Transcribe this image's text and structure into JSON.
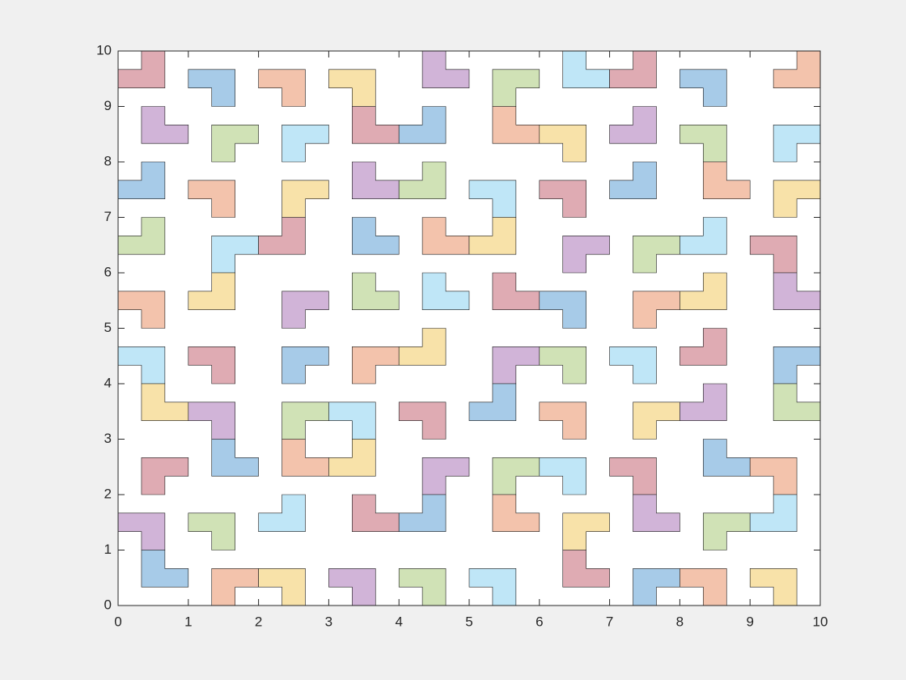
{
  "chart_data": {
    "type": "patch",
    "xlim": [
      0,
      10
    ],
    "ylim": [
      0,
      10
    ],
    "xticks": [
      0,
      1,
      2,
      3,
      4,
      5,
      6,
      7,
      8,
      9,
      10
    ],
    "yticks": [
      0,
      1,
      2,
      3,
      4,
      5,
      6,
      7,
      8,
      9,
      10
    ],
    "cell_size": 0.3333,
    "patches": [
      {
        "x": 0,
        "y": 9.3333,
        "missing": "tl",
        "color": "#dfabb3"
      },
      {
        "x": 1,
        "y": 9,
        "missing": "bl",
        "color": "#a7cbe8"
      },
      {
        "x": 2,
        "y": 9,
        "missing": "bl",
        "color": "#f3c3ac"
      },
      {
        "x": 3,
        "y": 9,
        "missing": "bl",
        "color": "#f8e2a9"
      },
      {
        "x": 4.3333,
        "y": 9.3333,
        "missing": "tr",
        "color": "#d1b4d8"
      },
      {
        "x": 5.3333,
        "y": 9,
        "missing": "br",
        "color": "#d0e2b6"
      },
      {
        "x": 6.3333,
        "y": 9.3333,
        "missing": "tr",
        "color": "#bfe6f7"
      },
      {
        "x": 7,
        "y": 9.3333,
        "missing": "tl",
        "color": "#dfabb3"
      },
      {
        "x": 8,
        "y": 9,
        "missing": "bl",
        "color": "#a7cbe8"
      },
      {
        "x": 9.3333,
        "y": 9.3333,
        "missing": "tl",
        "color": "#f3c3ac"
      },
      {
        "x": 0.3333,
        "y": 8.3333,
        "missing": "tr",
        "color": "#d1b4d8"
      },
      {
        "x": 1.3333,
        "y": 8,
        "missing": "br",
        "color": "#d0e2b6"
      },
      {
        "x": 2.3333,
        "y": 8,
        "missing": "br",
        "color": "#bfe6f7"
      },
      {
        "x": 3.3333,
        "y": 8.3333,
        "missing": "tr",
        "color": "#dfabb3"
      },
      {
        "x": 4,
        "y": 8.3333,
        "missing": "tl",
        "color": "#a7cbe8"
      },
      {
        "x": 5.3333,
        "y": 8.3333,
        "missing": "tr",
        "color": "#f3c3ac"
      },
      {
        "x": 6,
        "y": 8,
        "missing": "bl",
        "color": "#f8e2a9"
      },
      {
        "x": 7,
        "y": 8.3333,
        "missing": "tl",
        "color": "#d1b4d8"
      },
      {
        "x": 8,
        "y": 8,
        "missing": "bl",
        "color": "#d0e2b6"
      },
      {
        "x": 9.3333,
        "y": 8,
        "missing": "br",
        "color": "#bfe6f7"
      },
      {
        "x": 0,
        "y": 7.3333,
        "missing": "tl",
        "color": "#a7cbe8"
      },
      {
        "x": 1,
        "y": 7,
        "missing": "bl",
        "color": "#f3c3ac"
      },
      {
        "x": 2.3333,
        "y": 7,
        "missing": "br",
        "color": "#f8e2a9"
      },
      {
        "x": 3.3333,
        "y": 7.3333,
        "missing": "tr",
        "color": "#d1b4d8"
      },
      {
        "x": 4,
        "y": 7.3333,
        "missing": "tl",
        "color": "#d0e2b6"
      },
      {
        "x": 5,
        "y": 7,
        "missing": "bl",
        "color": "#bfe6f7"
      },
      {
        "x": 6,
        "y": 7,
        "missing": "bl",
        "color": "#dfabb3"
      },
      {
        "x": 7,
        "y": 7.3333,
        "missing": "tl",
        "color": "#a7cbe8"
      },
      {
        "x": 8.3333,
        "y": 7.3333,
        "missing": "tr",
        "color": "#f3c3ac"
      },
      {
        "x": 9.3333,
        "y": 7,
        "missing": "br",
        "color": "#f8e2a9"
      },
      {
        "x": 0,
        "y": 6.3333,
        "missing": "tl",
        "color": "#d0e2b6"
      },
      {
        "x": 1.3333,
        "y": 6,
        "missing": "br",
        "color": "#bfe6f7"
      },
      {
        "x": 2,
        "y": 6.3333,
        "missing": "tl",
        "color": "#dfabb3"
      },
      {
        "x": 3.3333,
        "y": 6.3333,
        "missing": "tr",
        "color": "#a7cbe8"
      },
      {
        "x": 4.3333,
        "y": 6.3333,
        "missing": "tr",
        "color": "#f3c3ac"
      },
      {
        "x": 5,
        "y": 6.3333,
        "missing": "tl",
        "color": "#f8e2a9"
      },
      {
        "x": 6.3333,
        "y": 6,
        "missing": "br",
        "color": "#d1b4d8"
      },
      {
        "x": 7.3333,
        "y": 6,
        "missing": "br",
        "color": "#d0e2b6"
      },
      {
        "x": 8,
        "y": 6.3333,
        "missing": "tl",
        "color": "#bfe6f7"
      },
      {
        "x": 9,
        "y": 6,
        "missing": "bl",
        "color": "#dfabb3"
      },
      {
        "x": 0,
        "y": 5,
        "missing": "bl",
        "color": "#f3c3ac"
      },
      {
        "x": 1,
        "y": 5.3333,
        "missing": "tl",
        "color": "#f8e2a9"
      },
      {
        "x": 2.3333,
        "y": 5,
        "missing": "br",
        "color": "#d1b4d8"
      },
      {
        "x": 3.3333,
        "y": 5.3333,
        "missing": "tr",
        "color": "#d0e2b6"
      },
      {
        "x": 4.3333,
        "y": 5.3333,
        "missing": "tr",
        "color": "#bfe6f7"
      },
      {
        "x": 5.3333,
        "y": 5.3333,
        "missing": "tr",
        "color": "#dfabb3"
      },
      {
        "x": 6,
        "y": 5,
        "missing": "bl",
        "color": "#a7cbe8"
      },
      {
        "x": 7.3333,
        "y": 5,
        "missing": "br",
        "color": "#f3c3ac"
      },
      {
        "x": 8,
        "y": 5.3333,
        "missing": "tl",
        "color": "#f8e2a9"
      },
      {
        "x": 9.3333,
        "y": 5.3333,
        "missing": "tr",
        "color": "#d1b4d8"
      },
      {
        "x": 0,
        "y": 4,
        "missing": "bl",
        "color": "#bfe6f7"
      },
      {
        "x": 1,
        "y": 4,
        "missing": "bl",
        "color": "#dfabb3"
      },
      {
        "x": 2.3333,
        "y": 4,
        "missing": "br",
        "color": "#a7cbe8"
      },
      {
        "x": 3.3333,
        "y": 4,
        "missing": "br",
        "color": "#f3c3ac"
      },
      {
        "x": 4,
        "y": 4.3333,
        "missing": "tl",
        "color": "#f8e2a9"
      },
      {
        "x": 5.3333,
        "y": 4,
        "missing": "br",
        "color": "#d1b4d8"
      },
      {
        "x": 6,
        "y": 4,
        "missing": "bl",
        "color": "#d0e2b6"
      },
      {
        "x": 7,
        "y": 4,
        "missing": "bl",
        "color": "#bfe6f7"
      },
      {
        "x": 8,
        "y": 4.3333,
        "missing": "tl",
        "color": "#dfabb3"
      },
      {
        "x": 9.3333,
        "y": 4,
        "missing": "br",
        "color": "#a7cbe8"
      },
      {
        "x": 0.3333,
        "y": 3.3333,
        "missing": "tr",
        "color": "#f8e2a9"
      },
      {
        "x": 1,
        "y": 3,
        "missing": "bl",
        "color": "#d1b4d8"
      },
      {
        "x": 2.3333,
        "y": 3,
        "missing": "br",
        "color": "#d0e2b6"
      },
      {
        "x": 3,
        "y": 3,
        "missing": "bl",
        "color": "#bfe6f7"
      },
      {
        "x": 4,
        "y": 3,
        "missing": "bl",
        "color": "#dfabb3"
      },
      {
        "x": 5,
        "y": 3.3333,
        "missing": "tl",
        "color": "#a7cbe8"
      },
      {
        "x": 6,
        "y": 3,
        "missing": "bl",
        "color": "#f3c3ac"
      },
      {
        "x": 7.3333,
        "y": 3,
        "missing": "br",
        "color": "#f8e2a9"
      },
      {
        "x": 8,
        "y": 3.3333,
        "missing": "tl",
        "color": "#d1b4d8"
      },
      {
        "x": 9.3333,
        "y": 3.3333,
        "missing": "tr",
        "color": "#d0e2b6"
      },
      {
        "x": 0.3333,
        "y": 2,
        "missing": "br",
        "color": "#dfabb3"
      },
      {
        "x": 1.3333,
        "y": 2.3333,
        "missing": "tr",
        "color": "#a7cbe8"
      },
      {
        "x": 2.3333,
        "y": 2.3333,
        "missing": "tr",
        "color": "#f3c3ac"
      },
      {
        "x": 3,
        "y": 2.3333,
        "missing": "tl",
        "color": "#f8e2a9"
      },
      {
        "x": 4.3333,
        "y": 2,
        "missing": "br",
        "color": "#d1b4d8"
      },
      {
        "x": 5.3333,
        "y": 2,
        "missing": "br",
        "color": "#d0e2b6"
      },
      {
        "x": 6,
        "y": 2,
        "missing": "bl",
        "color": "#bfe6f7"
      },
      {
        "x": 7,
        "y": 2,
        "missing": "bl",
        "color": "#dfabb3"
      },
      {
        "x": 8.3333,
        "y": 2.3333,
        "missing": "tr",
        "color": "#a7cbe8"
      },
      {
        "x": 9,
        "y": 2,
        "missing": "bl",
        "color": "#f3c3ac"
      },
      {
        "x": 0,
        "y": 1,
        "missing": "bl",
        "color": "#d1b4d8"
      },
      {
        "x": 1,
        "y": 1,
        "missing": "bl",
        "color": "#d0e2b6"
      },
      {
        "x": 2,
        "y": 1.3333,
        "missing": "tl",
        "color": "#bfe6f7"
      },
      {
        "x": 3.3333,
        "y": 1.3333,
        "missing": "tr",
        "color": "#dfabb3"
      },
      {
        "x": 4,
        "y": 1.3333,
        "missing": "tl",
        "color": "#a7cbe8"
      },
      {
        "x": 5.3333,
        "y": 1.3333,
        "missing": "tr",
        "color": "#f3c3ac"
      },
      {
        "x": 6.3333,
        "y": 1,
        "missing": "br",
        "color": "#f8e2a9"
      },
      {
        "x": 7.3333,
        "y": 1.3333,
        "missing": "tr",
        "color": "#d1b4d8"
      },
      {
        "x": 8.3333,
        "y": 1,
        "missing": "br",
        "color": "#d0e2b6"
      },
      {
        "x": 9,
        "y": 1.3333,
        "missing": "tl",
        "color": "#bfe6f7"
      },
      {
        "x": 0.3333,
        "y": 0.3333,
        "missing": "tr",
        "color": "#a7cbe8"
      },
      {
        "x": 1.3333,
        "y": 0,
        "missing": "br",
        "color": "#f3c3ac"
      },
      {
        "x": 2,
        "y": 0,
        "missing": "bl",
        "color": "#f8e2a9"
      },
      {
        "x": 3,
        "y": 0,
        "missing": "bl",
        "color": "#d1b4d8"
      },
      {
        "x": 4,
        "y": 0,
        "missing": "bl",
        "color": "#d0e2b6"
      },
      {
        "x": 5,
        "y": 0,
        "missing": "bl",
        "color": "#bfe6f7"
      },
      {
        "x": 6.3333,
        "y": 0.3333,
        "missing": "tr",
        "color": "#dfabb3"
      },
      {
        "x": 7.3333,
        "y": 0,
        "missing": "br",
        "color": "#a7cbe8"
      },
      {
        "x": 8,
        "y": 0,
        "missing": "bl",
        "color": "#f3c3ac"
      },
      {
        "x": 9,
        "y": 0,
        "missing": "bl",
        "color": "#f8e2a9"
      }
    ]
  }
}
